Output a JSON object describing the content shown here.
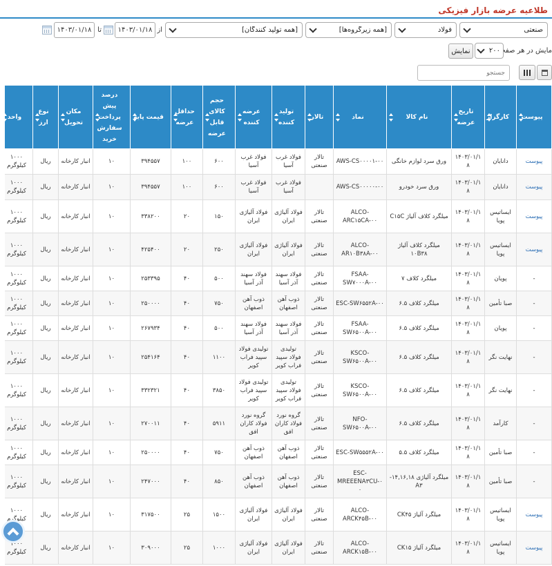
{
  "page": {
    "title": "طلاعیه عرضه بازار فیزیکی"
  },
  "filters": {
    "market": "صنعتی",
    "group": "فولاد",
    "subgroup": "[همه زیرگروه‌ها]",
    "producer": "[همه تولید کنندگان]",
    "from_label": "از",
    "from_date": "۱۴۰۳/۰۱/۱۸",
    "to_label": "تا",
    "to_date": "۱۴۰۳/۰۱/۱۸"
  },
  "paging": {
    "label": "مایش در هر صفحه",
    "value": "۲۰۰",
    "show_button": "نمایش"
  },
  "toolbar": {
    "search_placeholder": "جستجو"
  },
  "table": {
    "headers": [
      "پیوست",
      "کارگزار",
      "تاریخ عرضه",
      "نام کالا",
      "نماد",
      "تالار",
      "تولید کننده",
      "عرضه کننده",
      "حجم کالای قابل عرضه",
      "حداقل عرضه",
      "قیمت پایه",
      "درصد پیش پرداخت سفارش خرید",
      "مکان تحویل",
      "نوع ارز",
      "واحد"
    ],
    "rows": [
      [
        "پیوست",
        "دانایان",
        "۱۴۰۳/۰۱/۱۸",
        "ورق سرد لوازم خانگی",
        "AWS-CS۰۰۰۰۱-۰۰",
        "تالار صنعتی",
        "فولاد غرب آسیا",
        "فولاد غرب آسیا",
        "۶۰۰",
        "۱۰۰",
        "۳۹۴۵۵۷",
        "۱۰",
        "انبار کارخانه",
        "ریال",
        "۱۰۰۰ کیلوگرم"
      ],
      [
        "پیوست",
        "دانایان",
        "۱۴۰۳/۰۱/۱۸",
        "ورق سرد خودرو",
        "AWS-CS۰۰۰۰۰-۰۰",
        "",
        "فولاد غرب آسیا",
        "فولاد غرب آسیا",
        "۶۰۰",
        "۱۰۰",
        "۳۹۴۵۵۷",
        "۱۰",
        "انبار کارخانه",
        "ریال",
        "۱۰۰۰ کیلوگرم"
      ],
      [
        "پیوست",
        "ایساتیس پویا",
        "۱۴۰۳/۰۱/۱۸",
        "میلگرد کلاف آلیاژ C۱۵C",
        "ALCO-ARC۱۵CA-۰۰",
        "تالار صنعتی",
        "فولاد آلیاژی ایران",
        "فولاد آلیاژی ایران",
        "۱۵۰",
        "۲۰",
        "۳۳۸۲۰۰",
        "۱۰",
        "انبار کارخانه",
        "ریال",
        "۱۰۰۰ کیلوگرم"
      ],
      [
        "پیوست",
        "ایساتیس پویا",
        "۱۴۰۳/۰۱/۱۸",
        "میلگرد کلاف آلیاژ ۱۰B۳۸",
        "ALCO-AR۱۰B۳۸A-۰۰",
        "تالار صنعتی",
        "فولاد آلیاژی ایران",
        "فولاد آلیاژی ایران",
        "۲۵۰",
        "۲۰",
        "۴۲۵۴۰۰",
        "۱۰",
        "انبار کارخانه",
        "ریال",
        "۱۰۰۰ کیلوگرم"
      ],
      [
        "-",
        "پویان",
        "۱۴۰۳/۰۱/۱۸",
        "میلگرد کلاف ۷",
        "FSAA-SW۷۰۰۰A-۰۰",
        "تالار صنعتی",
        "فولاد سهند آذر آسیا",
        "فولاد سهند آذر آسیا",
        "۵۰۰",
        "۴۰",
        "۲۵۳۳۹۵",
        "۱۰",
        "انبار کارخانه",
        "ریال",
        "۱۰۰۰ کیلوگرم"
      ],
      [
        "-",
        "صبا تأمین",
        "۱۴۰۳/۰۱/۱۸",
        "میلگرد کلاف ۶.۵",
        "ESC-SW۶۵۵۲A-۰۰",
        "تالار صنعتی",
        "ذوب آهن اصفهان",
        "ذوب آهن اصفهان",
        "۷۵۰",
        "۴۰",
        "۲۵۰۰۰۰",
        "۱۰",
        "انبار کارخانه",
        "ریال",
        "۱۰۰۰ کیلوگرم"
      ],
      [
        "-",
        "پویان",
        "۱۴۰۳/۰۱/۱۸",
        "میلگرد کلاف ۶.۵",
        "FSAA-SW۶۵۰۰A-۰۰",
        "تالار صنعتی",
        "فولاد سهند آذر آسیا",
        "فولاد سهند آذر آسیا",
        "۵۰۰",
        "۴۰",
        "۲۶۷۹۳۴",
        "۱۰",
        "انبار کارخانه",
        "ریال",
        "۱۰۰۰ کیلوگرم"
      ],
      [
        "-",
        "نهایت نگر",
        "۱۴۰۳/۰۱/۱۸",
        "میلگرد کلاف ۶.۵",
        "KSCO-SW۶۵۰۰A-۰۰",
        "تالار صنعتی",
        "تولیدی فولاد سپید فراب کویر",
        "تولیدی فولاد سپید فراب کویر",
        "۱۱۰۰",
        "۴۰",
        "۲۵۴۱۶۴",
        "۱۰",
        "انبار کارخانه",
        "ریال",
        "۱۰۰۰ کیلوگرم"
      ],
      [
        "-",
        "نهایت نگر",
        "۱۴۰۳/۰۱/۱۸",
        "میلگرد کلاف ۶.۵",
        "KSCO-SW۶۵۰۰A-۰۰",
        "تالار صنعتی",
        "تولیدی فولاد سپید فراب کویر",
        "تولیدی فولاد سپید فراب کویر",
        "۳۸۵۰",
        "۴۰",
        "۳۳۲۳۲۱",
        "۱۰",
        "انبار کارخانه",
        "ریال",
        "۱۰۰۰ کیلوگرم"
      ],
      [
        "-",
        "کارآمد",
        "۱۴۰۳/۰۱/۱۸",
        "میلگرد کلاف ۶.۵",
        "NFO-SW۶۵۰۰A-۰۰",
        "تالار صنعتی",
        "گروه نورد فولاد کاران افق",
        "گروه نورد فولاد کاران افق",
        "۵۹۱۱",
        "۴۰",
        "۲۷۰۰۱۱",
        "۱۰",
        "انبار کارخانه",
        "ریال",
        "۱۰۰۰ کیلوگرم"
      ],
      [
        "-",
        "صبا تأمین",
        "۱۴۰۳/۰۱/۱۸",
        "میلگرد کلاف ۵.۵",
        "ESC-SW۵۵۵۲A-۰۰",
        "تالار صنعتی",
        "ذوب آهن اصفهان",
        "ذوب آهن اصفهان",
        "۷۵۰",
        "۴۰",
        "۲۵۰۰۰۰",
        "۱۰",
        "انبار کارخانه",
        "ریال",
        "۱۰۰۰ کیلوگرم"
      ],
      [
        "-",
        "صبا تأمین",
        "۱۴۰۳/۰۱/۱۸",
        "میلگرد آلیاژی ۱۴,۱۶,۱۸- A۳",
        "ESC-MREEENA۳CU-۰۰",
        "تالار صنعتی",
        "ذوب آهن اصفهان",
        "ذوب آهن اصفهان",
        "۸۵۰",
        "۴۰",
        "۲۴۷۰۰۰",
        "۱۰",
        "انبار کارخانه",
        "ریال",
        "۱۰۰۰ کیلوگرم"
      ],
      [
        "پیوست",
        "ایساتیس پویا",
        "۱۴۰۳/۰۱/۱۸",
        "میلگرد آلیاژ CK۴۵",
        "ALCO-ARCK۴۵B-۰۰",
        "تالار صنعتی",
        "فولاد آلیاژی ایران",
        "فولاد آلیاژی ایران",
        "۱۵۰۰",
        "۲۵",
        "۳۱۷۵۰۰",
        "۱۰",
        "انبار کارخانه",
        "ریال",
        "۱۰۰۰ کیلوگرم"
      ],
      [
        "پیوست",
        "ایساتیس پویا",
        "۱۴۰۳/۰۱/۱۸",
        "میلگرد آلیاژ CK۱۵",
        "ALCO-ARCK۱۵B-۰۰",
        "تالار صنعتی",
        "فولاد آلیاژی ایران",
        "فولاد آلیاژی ایران",
        "۱۰۰۰",
        "۲۵",
        "۳۰۹۰۰۰",
        "۱۰",
        "انبار کارخانه",
        "ریال",
        "۱۰۰۰ کیلوگرم"
      ]
    ]
  }
}
